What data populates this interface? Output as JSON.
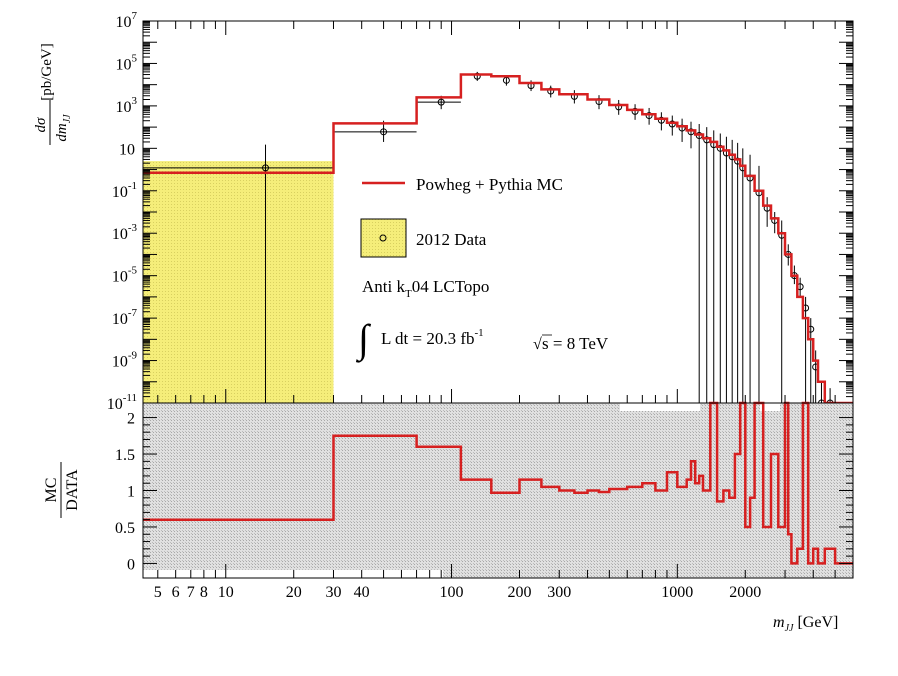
{
  "chart_data": [
    {
      "type": "line",
      "panel": "top",
      "ylabel_num": "dσ",
      "ylabel_den": "dm",
      "ylabel_den_sub": "JJ",
      "ylabel_unit": "[pb/GeV]",
      "xscale": "log",
      "yscale": "log",
      "xlim": [
        4.3,
        6000
      ],
      "ylim": [
        1e-11,
        10000000.0
      ],
      "y_ticks": [
        {
          "v": 10000000.0,
          "b": "10",
          "e": "7"
        },
        {
          "v": 100000.0,
          "b": "10",
          "e": "5"
        },
        {
          "v": 1000.0,
          "b": "10",
          "e": "3"
        },
        {
          "v": 10,
          "b": "10",
          "e": ""
        },
        {
          "v": 0.1,
          "b": "10",
          "e": "-1"
        },
        {
          "v": 0.001,
          "b": "10",
          "e": "-3"
        },
        {
          "v": 1e-05,
          "b": "10",
          "e": "-5"
        },
        {
          "v": 1e-07,
          "b": "10",
          "e": "-7"
        },
        {
          "v": 1e-09,
          "b": "10",
          "e": "-9"
        },
        {
          "v": 1e-11,
          "b": "10",
          "e": "-11"
        }
      ],
      "legend": {
        "mc_label": "Powheg + Pythia MC",
        "data_label": "2012 Data",
        "algo_label": "Anti k",
        "algo_sub": "T",
        "algo_rest": "04 LCTopo",
        "lumi_label": "L dt = 20.3 fb",
        "lumi_sup": "-1",
        "energy_label": "s = 8 TeV"
      },
      "mc_series": {
        "name": "Powheg + Pythia MC",
        "color": "#d62020",
        "edges": [
          4.3,
          30,
          70,
          110,
          150,
          200,
          250,
          300,
          400,
          500,
          600,
          700,
          800,
          900,
          1000,
          1100,
          1200,
          1300,
          1400,
          1500,
          1600,
          1700,
          1800,
          1900,
          2000,
          2200,
          2400,
          2600,
          2800,
          3000,
          3200,
          3400,
          3600,
          3800,
          4000,
          4200,
          4500,
          5000,
          6000
        ],
        "values": [
          0.7,
          150,
          2500,
          30000,
          25000,
          12000,
          6000,
          3500,
          2000,
          1100,
          650,
          400,
          250,
          160,
          110,
          70,
          45,
          30,
          20,
          12,
          8,
          5,
          3,
          1.5,
          0.5,
          0.1,
          0.02,
          0.005,
          0.001,
          0.0001,
          1e-05,
          1e-06,
          1e-07,
          1e-08,
          1e-09,
          1e-10,
          1e-11,
          5e-12
        ]
      },
      "data_series": {
        "name": "2012 Data",
        "band_color": "#f5ee7a",
        "band": {
          "x_from": 4.3,
          "x_to": 30,
          "y_from": 1e-11,
          "y_to": 2.5
        },
        "points": [
          {
            "x": 15,
            "y": 1.2,
            "lo": 1e-11,
            "hi": 15,
            "xlo": 4.3,
            "xhi": 30
          },
          {
            "x": 50,
            "y": 60,
            "lo": 20,
            "hi": 200,
            "xlo": 30,
            "xhi": 70
          },
          {
            "x": 90,
            "y": 1500,
            "lo": 700,
            "hi": 3000,
            "xlo": 70,
            "xhi": 110
          },
          {
            "x": 130,
            "y": 25000,
            "lo": 15000,
            "hi": 40000
          },
          {
            "x": 175,
            "y": 16000,
            "lo": 9000,
            "hi": 28000
          },
          {
            "x": 225,
            "y": 9000,
            "lo": 5000,
            "hi": 16000
          },
          {
            "x": 275,
            "y": 5000,
            "lo": 2500,
            "hi": 9000
          },
          {
            "x": 350,
            "y": 2800,
            "lo": 1300,
            "hi": 5500
          },
          {
            "x": 450,
            "y": 1600,
            "lo": 700,
            "hi": 3200
          },
          {
            "x": 550,
            "y": 900,
            "lo": 380,
            "hi": 1900
          },
          {
            "x": 650,
            "y": 550,
            "lo": 220,
            "hi": 1200
          },
          {
            "x": 750,
            "y": 350,
            "lo": 130,
            "hi": 800
          },
          {
            "x": 850,
            "y": 210,
            "lo": 70,
            "hi": 500
          },
          {
            "x": 950,
            "y": 140,
            "lo": 40,
            "hi": 350
          },
          {
            "x": 1050,
            "y": 90,
            "lo": 20,
            "hi": 250
          },
          {
            "x": 1150,
            "y": 60,
            "lo": 10,
            "hi": 180
          },
          {
            "x": 1250,
            "y": 40,
            "lo": 1e-11,
            "hi": 140
          },
          {
            "x": 1350,
            "y": 25,
            "lo": 1e-11,
            "hi": 100
          },
          {
            "x": 1450,
            "y": 15,
            "lo": 1e-11,
            "hi": 70
          },
          {
            "x": 1550,
            "y": 10,
            "lo": 1e-11,
            "hi": 50
          },
          {
            "x": 1650,
            "y": 6,
            "lo": 1e-11,
            "hi": 35
          },
          {
            "x": 1750,
            "y": 4,
            "lo": 1e-11,
            "hi": 25
          },
          {
            "x": 1850,
            "y": 2.5,
            "lo": 1e-11,
            "hi": 18
          },
          {
            "x": 1950,
            "y": 1.2,
            "lo": 1e-11,
            "hi": 10
          },
          {
            "x": 2100,
            "y": 0.4,
            "lo": 1e-11,
            "hi": 5
          },
          {
            "x": 2300,
            "y": 0.08,
            "lo": 1e-11,
            "hi": 1.5
          },
          {
            "x": 2500,
            "y": 0.015,
            "lo": 0.002,
            "hi": 0.05
          },
          {
            "x": 2700,
            "y": 0.004,
            "lo": 0.001,
            "hi": 0.01
          },
          {
            "x": 2900,
            "y": 0.0008,
            "lo": 1e-11,
            "hi": 0.004
          },
          {
            "x": 3100,
            "y": 0.0001,
            "lo": 3e-05,
            "hi": 0.0003
          },
          {
            "x": 3300,
            "y": 1e-05,
            "lo": 4e-06,
            "hi": 3e-05
          },
          {
            "x": 3500,
            "y": 3e-06,
            "lo": 1e-06,
            "hi": 8e-06
          },
          {
            "x": 3700,
            "y": 3e-07,
            "lo": 1e-11,
            "hi": 1e-06
          },
          {
            "x": 3900,
            "y": 3e-08,
            "lo": 1e-11,
            "hi": 1e-07
          },
          {
            "x": 4100,
            "y": 5e-10,
            "lo": 1e-11,
            "hi": 3e-09
          },
          {
            "x": 4350,
            "y": 1e-11,
            "lo": 1e-11,
            "hi": 1e-10
          },
          {
            "x": 4750,
            "y": 1e-11,
            "lo": 1e-11,
            "hi": 5e-11
          }
        ]
      }
    },
    {
      "type": "line",
      "panel": "ratio",
      "ylabel_num": "MC",
      "ylabel_den": "DATA",
      "xlabel": "m",
      "xlabel_sub": "JJ",
      "xlabel_unit": " [GeV]",
      "xscale": "log",
      "xlim": [
        4.3,
        6000
      ],
      "ylim": [
        -0.2,
        2.2
      ],
      "y_ticks": [
        {
          "v": 0,
          "label": "0"
        },
        {
          "v": 0.5,
          "label": "0.5"
        },
        {
          "v": 1,
          "label": "1"
        },
        {
          "v": 1.5,
          "label": "1.5"
        },
        {
          "v": 2,
          "label": "2"
        }
      ],
      "x_ticks": [
        {
          "v": 5,
          "label": "5"
        },
        {
          "v": 6,
          "label": "6"
        },
        {
          "v": 7,
          "label": "7"
        },
        {
          "v": 8,
          "label": "8"
        },
        {
          "v": 10,
          "label": "10"
        },
        {
          "v": 20,
          "label": "20"
        },
        {
          "v": 30,
          "label": "30"
        },
        {
          "v": 40,
          "label": "40"
        },
        {
          "v": 100,
          "label": "100"
        },
        {
          "v": 200,
          "label": "200"
        },
        {
          "v": 300,
          "label": "300"
        },
        {
          "v": 1000,
          "label": "1000"
        },
        {
          "v": 2000,
          "label": "2000"
        }
      ],
      "band_color": "#cccccc",
      "ratio_series": {
        "name": "MC/DATA",
        "color": "#d62020",
        "edges": [
          4.3,
          30,
          70,
          110,
          150,
          200,
          250,
          300,
          350,
          400,
          450,
          500,
          600,
          700,
          800,
          900,
          1000,
          1100,
          1150,
          1200,
          1250,
          1300,
          1400,
          1500,
          1600,
          1700,
          1800,
          1900,
          2000,
          2100,
          2200,
          2400,
          2600,
          2800,
          3000,
          3100,
          3200,
          3400,
          3600,
          3800,
          4000,
          4200,
          4500,
          5000,
          6000
        ],
        "values": [
          0.6,
          1.75,
          1.6,
          1.15,
          0.97,
          1.15,
          1.05,
          1.0,
          0.97,
          1.0,
          0.98,
          1.02,
          1.05,
          1.1,
          1.0,
          1.25,
          1.05,
          1.15,
          1.4,
          1.1,
          1.2,
          1.0,
          2.3,
          0.85,
          1.0,
          0.9,
          1.5,
          2.3,
          0.5,
          0.9,
          2.3,
          0.5,
          1.5,
          0.5,
          2.3,
          0.4,
          0.0,
          0.2,
          2.3,
          0.0,
          0.2,
          0.0,
          0.2,
          0.0
        ]
      }
    }
  ]
}
